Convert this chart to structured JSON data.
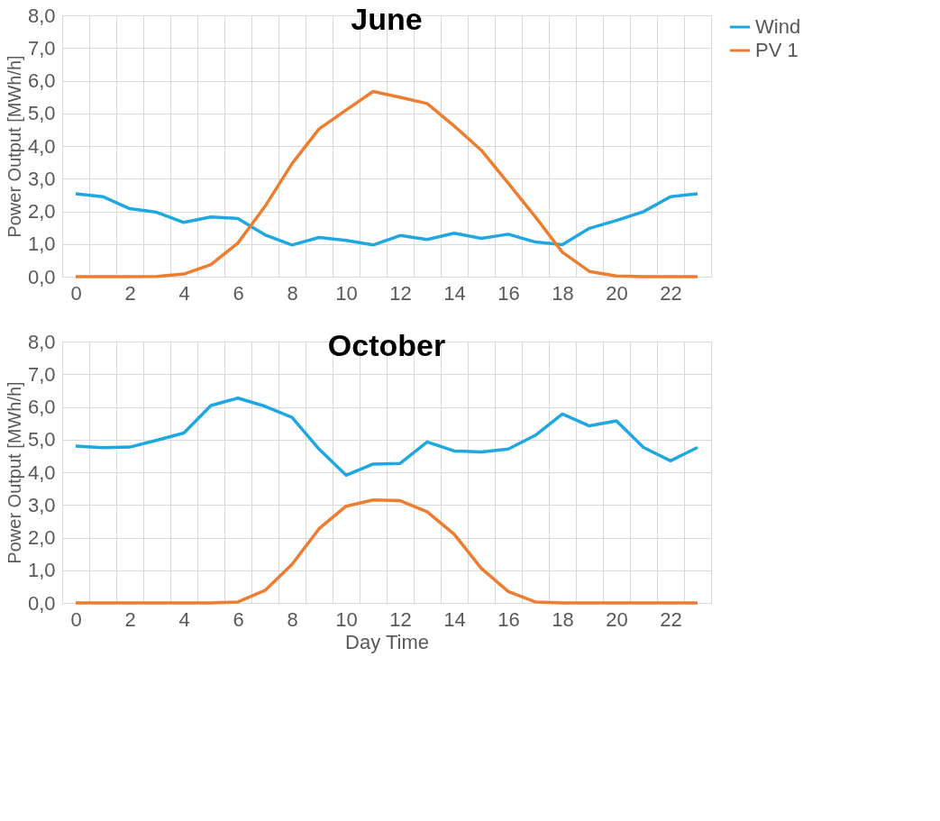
{
  "chart_data": [
    {
      "type": "line",
      "title": "June",
      "ylabel": "Power Output [MWh/h]",
      "categories": [
        "0",
        null,
        "2",
        null,
        "4",
        null,
        "6",
        null,
        "8",
        null,
        "10",
        null,
        "12",
        null,
        "14",
        null,
        "16",
        null,
        "18",
        null,
        "20",
        null,
        "22",
        null
      ],
      "series": [
        {
          "name": "Wind",
          "color": "#1ea7e1",
          "values": [
            2.54,
            2.45,
            2.08,
            1.97,
            1.66,
            1.83,
            1.78,
            1.28,
            0.97,
            1.2,
            1.11,
            0.97,
            1.26,
            1.14,
            1.33,
            1.17,
            1.3,
            1.06,
            0.98,
            1.48,
            1.72,
            1.99,
            2.45,
            2.54
          ]
        },
        {
          "name": "PV 1",
          "color": "#ed7d31",
          "values": [
            0,
            0,
            0,
            0.01,
            0.08,
            0.37,
            1.03,
            2.15,
            3.46,
            4.52,
            5.1,
            5.67,
            5.49,
            5.3,
            4.61,
            3.87,
            2.86,
            1.83,
            0.75,
            0.16,
            0.02,
            0,
            0,
            0
          ]
        }
      ],
      "ylim": [
        0,
        8
      ],
      "yticks": [
        {
          "value": 0,
          "label": "0,0"
        },
        {
          "value": 1,
          "label": "1,0"
        },
        {
          "value": 2,
          "label": "2,0"
        },
        {
          "value": 3,
          "label": "3,0"
        },
        {
          "value": 4,
          "label": "4,0"
        },
        {
          "value": 5,
          "label": "5,0"
        },
        {
          "value": 6,
          "label": "6,0"
        },
        {
          "value": 7,
          "label": "7,0"
        },
        {
          "value": 8,
          "label": "8,0"
        }
      ],
      "grid": true,
      "legend": "right",
      "marker": "none",
      "line_style": "solid"
    },
    {
      "type": "line",
      "title": "October",
      "ylabel": "Power Output [MWh/h]",
      "xlabel": "Day Time",
      "categories": [
        "0",
        null,
        "2",
        null,
        "4",
        null,
        "6",
        null,
        "8",
        null,
        "10",
        null,
        "12",
        null,
        "14",
        null,
        "16",
        null,
        "18",
        null,
        "20",
        null,
        "22",
        null
      ],
      "series": [
        {
          "name": "Wind",
          "color": "#1ea7e1",
          "values": [
            4.8,
            4.75,
            4.77,
            4.98,
            5.2,
            6.04,
            6.27,
            6.02,
            5.68,
            4.71,
            3.91,
            4.25,
            4.27,
            4.93,
            4.65,
            4.62,
            4.71,
            5.13,
            5.78,
            5.42,
            5.57,
            4.76,
            4.35,
            4.76
          ]
        },
        {
          "name": "PV 1",
          "color": "#ed7d31",
          "values": [
            0,
            0,
            0,
            0,
            0,
            0,
            0.03,
            0.38,
            1.18,
            2.27,
            2.96,
            3.15,
            3.13,
            2.79,
            2.1,
            1.06,
            0.35,
            0.03,
            0,
            0,
            0,
            0,
            0,
            0
          ]
        }
      ],
      "ylim": [
        0,
        8
      ],
      "yticks": [
        {
          "value": 0,
          "label": "0,0"
        },
        {
          "value": 1,
          "label": "1,0"
        },
        {
          "value": 2,
          "label": "2,0"
        },
        {
          "value": 3,
          "label": "3,0"
        },
        {
          "value": 4,
          "label": "4,0"
        },
        {
          "value": 5,
          "label": "5,0"
        },
        {
          "value": 6,
          "label": "6,0"
        },
        {
          "value": 7,
          "label": "7,0"
        },
        {
          "value": 8,
          "label": "8,0"
        }
      ],
      "grid": true,
      "legend": "right",
      "marker": "none",
      "line_style": "solid"
    }
  ]
}
